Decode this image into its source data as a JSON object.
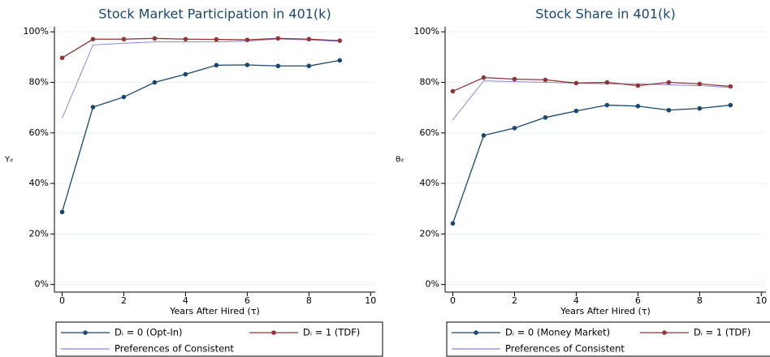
{
  "chart_data": [
    {
      "type": "line",
      "title": "Stock Market Participation in 401(k)",
      "x_label": "Years After Hired (τ)",
      "y_label": "Yᵢₜ",
      "x": [
        0,
        1,
        2,
        3,
        4,
        5,
        6,
        7,
        8,
        9
      ],
      "series": [
        {
          "name": "Dᵢ = 0 (Opt-In)",
          "color": "#1a476f",
          "markers": true,
          "values": [
            28.7,
            70.2,
            74.2,
            80.0,
            83.2,
            86.8,
            86.9,
            86.5,
            86.5,
            88.7
          ]
        },
        {
          "name": "Dᵢ = 1 (TDF)",
          "color": "#90353b",
          "markers": true,
          "values": [
            89.7,
            97.1,
            97.1,
            97.4,
            97.1,
            97.0,
            96.8,
            97.4,
            97.1,
            96.5
          ]
        },
        {
          "name": "Preferences of Consistent",
          "color": "#8e86d6",
          "markers": false,
          "values": [
            65.8,
            94.8,
            95.5,
            96.0,
            96.0,
            96.0,
            96.3,
            97.2,
            96.8,
            96.2
          ]
        }
      ],
      "xlim": [
        -0.25,
        10.15
      ],
      "xticks": [
        0,
        2,
        4,
        6,
        8,
        10
      ],
      "ylim": [
        -3,
        102
      ],
      "yticks": [
        {
          "value": 0,
          "label": "0%"
        },
        {
          "value": 20,
          "label": "20%"
        },
        {
          "value": 40,
          "label": "40%"
        },
        {
          "value": 60,
          "label": "60%"
        },
        {
          "value": 80,
          "label": "80%"
        },
        {
          "value": 100,
          "label": "100%"
        }
      ],
      "grid": true,
      "legend": "bottom"
    },
    {
      "type": "line",
      "title": "Stock Share in 401(k)",
      "x_label": "Years After Hired (τ)",
      "y_label": "θᵢₜ",
      "x": [
        0,
        1,
        2,
        3,
        4,
        5,
        6,
        7,
        8,
        9
      ],
      "series": [
        {
          "name": "Dᵢ = 0 (Money Market)",
          "color": "#1a476f",
          "markers": true,
          "values": [
            24.2,
            59.0,
            61.9,
            66.1,
            68.7,
            71.0,
            70.6,
            69.0,
            69.7,
            71.0
          ]
        },
        {
          "name": "Dᵢ = 1 (TDF)",
          "color": "#90353b",
          "markers": true,
          "values": [
            76.5,
            81.9,
            81.3,
            81.0,
            79.7,
            80.0,
            78.7,
            80.0,
            79.4,
            78.4
          ]
        },
        {
          "name": "Preferences of Consistent",
          "color": "#8e86d6",
          "markers": false,
          "values": [
            65.2,
            80.6,
            80.3,
            80.0,
            79.7,
            79.4,
            79.4,
            79.0,
            78.7,
            78.0
          ]
        }
      ],
      "xlim": [
        -0.25,
        10.15
      ],
      "xticks": [
        0,
        2,
        4,
        6,
        8,
        10
      ],
      "ylim": [
        -3,
        102
      ],
      "yticks": [
        {
          "value": 0,
          "label": "0%"
        },
        {
          "value": 20,
          "label": "20%"
        },
        {
          "value": 40,
          "label": "40%"
        },
        {
          "value": 60,
          "label": "60%"
        },
        {
          "value": 80,
          "label": "80%"
        },
        {
          "value": 100,
          "label": "100%"
        }
      ],
      "grid": true,
      "legend": "bottom"
    }
  ]
}
